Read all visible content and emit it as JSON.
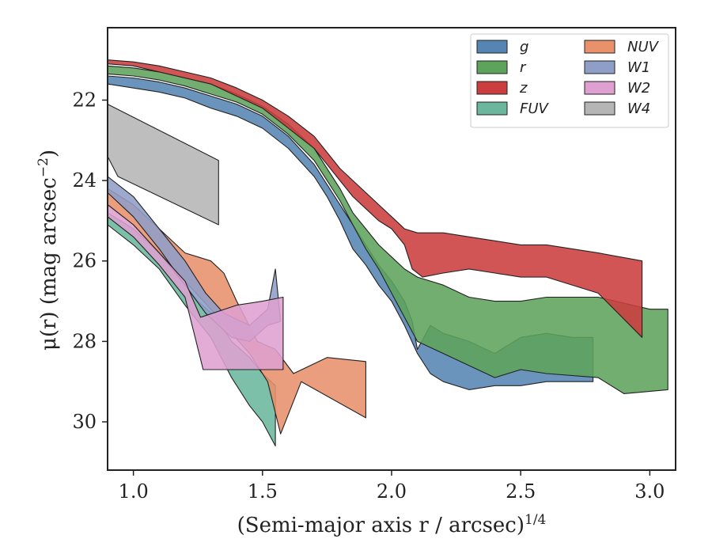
{
  "chart_data": {
    "type": "area",
    "xlabel": "(Semi-major axis r / arcsec)",
    "xlabel_superscript": "1/4",
    "ylabel": "μ(r) (mag arcsec",
    "ylabel_superscript": "−2",
    "ylabel_close": ")",
    "xlim": [
      0.9,
      3.1
    ],
    "ylim": [
      31.2,
      20.2
    ],
    "y_inverted": true,
    "xticks": [
      1.0,
      1.5,
      2.0,
      2.5,
      3.0
    ],
    "xtick_labels": [
      "1.0",
      "1.5",
      "2.0",
      "2.5",
      "3.0"
    ],
    "yticks": [
      22,
      24,
      26,
      28,
      30
    ],
    "ytick_labels": [
      "22",
      "24",
      "26",
      "28",
      "30"
    ],
    "grid": false,
    "legend_position": "top-right",
    "legend_columns": 2,
    "series": [
      {
        "name": "FUV",
        "color": "#6bb79e",
        "upper": [
          [
            0.9,
            24.8
          ],
          [
            1.0,
            25.2
          ],
          [
            1.1,
            25.8
          ],
          [
            1.2,
            26.6
          ],
          [
            1.25,
            27.0
          ],
          [
            1.32,
            27.4
          ],
          [
            1.38,
            28.0
          ],
          [
            1.45,
            28.4
          ],
          [
            1.5,
            28.8
          ],
          [
            1.55,
            29.1
          ]
        ],
        "lower": [
          [
            0.9,
            25.1
          ],
          [
            1.0,
            25.6
          ],
          [
            1.1,
            26.2
          ],
          [
            1.2,
            27.1
          ],
          [
            1.3,
            27.9
          ],
          [
            1.38,
            28.9
          ],
          [
            1.45,
            29.6
          ],
          [
            1.5,
            30.0
          ],
          [
            1.55,
            30.6
          ]
        ]
      },
      {
        "name": "NUV",
        "color": "#e8916b",
        "upper": [
          [
            0.9,
            24.2
          ],
          [
            1.0,
            24.6
          ],
          [
            1.1,
            25.2
          ],
          [
            1.2,
            25.8
          ],
          [
            1.3,
            26.0
          ],
          [
            1.35,
            26.3
          ],
          [
            1.4,
            27.0
          ],
          [
            1.48,
            28.0
          ],
          [
            1.55,
            28.2
          ],
          [
            1.62,
            28.8
          ],
          [
            1.75,
            28.4
          ],
          [
            1.9,
            28.5
          ]
        ],
        "lower": [
          [
            0.9,
            24.6
          ],
          [
            1.0,
            25.1
          ],
          [
            1.1,
            25.8
          ],
          [
            1.2,
            26.5
          ],
          [
            1.3,
            27.2
          ],
          [
            1.38,
            27.8
          ],
          [
            1.45,
            28.3
          ],
          [
            1.52,
            29.0
          ],
          [
            1.57,
            30.3
          ],
          [
            1.65,
            29.0
          ],
          [
            1.9,
            29.9
          ]
        ]
      },
      {
        "name": "W1",
        "color": "#8f9ec7",
        "upper": [
          [
            0.9,
            23.9
          ],
          [
            1.0,
            24.4
          ],
          [
            1.1,
            25.2
          ],
          [
            1.2,
            26.0
          ],
          [
            1.28,
            26.8
          ],
          [
            1.35,
            27.3
          ],
          [
            1.45,
            27.6
          ],
          [
            1.52,
            27.2
          ],
          [
            1.55,
            26.2
          ]
        ],
        "lower": [
          [
            0.9,
            24.3
          ],
          [
            1.0,
            24.9
          ],
          [
            1.1,
            25.7
          ],
          [
            1.2,
            26.6
          ],
          [
            1.28,
            27.3
          ],
          [
            1.38,
            27.9
          ],
          [
            1.45,
            28.0
          ],
          [
            1.52,
            27.6
          ],
          [
            1.57,
            27.5
          ]
        ]
      },
      {
        "name": "W2",
        "color": "#dea0d0",
        "upper": [
          [
            0.9,
            24.6
          ],
          [
            1.0,
            25.1
          ],
          [
            1.1,
            25.8
          ],
          [
            1.2,
            26.5
          ],
          [
            1.26,
            27.4
          ],
          [
            1.4,
            27.1
          ],
          [
            1.5,
            27.0
          ],
          [
            1.58,
            26.9
          ]
        ],
        "lower": [
          [
            0.9,
            24.9
          ],
          [
            1.0,
            25.4
          ],
          [
            1.1,
            26.1
          ],
          [
            1.2,
            26.9
          ],
          [
            1.27,
            28.7
          ],
          [
            1.4,
            28.7
          ],
          [
            1.58,
            28.7
          ]
        ]
      },
      {
        "name": "W4",
        "color": "#b5b5b5",
        "upper": [
          [
            0.9,
            22.1
          ],
          [
            1.33,
            23.5
          ]
        ],
        "lower": [
          [
            0.9,
            23.4
          ],
          [
            0.94,
            23.9
          ],
          [
            1.33,
            25.1
          ]
        ]
      },
      {
        "name": "g",
        "color": "#5685b4",
        "upper": [
          [
            0.9,
            21.4
          ],
          [
            1.0,
            21.45
          ],
          [
            1.1,
            21.55
          ],
          [
            1.2,
            21.7
          ],
          [
            1.3,
            21.9
          ],
          [
            1.4,
            22.1
          ],
          [
            1.5,
            22.4
          ],
          [
            1.6,
            22.9
          ],
          [
            1.7,
            23.6
          ],
          [
            1.75,
            24.1
          ],
          [
            1.8,
            24.6
          ],
          [
            1.85,
            25.1
          ],
          [
            1.9,
            25.6
          ],
          [
            1.95,
            26.1
          ],
          [
            2.0,
            26.5
          ],
          [
            2.05,
            27.0
          ],
          [
            2.08,
            27.5
          ],
          [
            2.1,
            28.2
          ],
          [
            2.15,
            27.6
          ],
          [
            2.2,
            27.8
          ],
          [
            2.3,
            28.0
          ],
          [
            2.4,
            28.3
          ],
          [
            2.5,
            27.9
          ],
          [
            2.6,
            27.8
          ],
          [
            2.7,
            27.9
          ],
          [
            2.78,
            27.9
          ]
        ],
        "lower": [
          [
            0.9,
            21.6
          ],
          [
            1.0,
            21.7
          ],
          [
            1.1,
            21.8
          ],
          [
            1.2,
            21.95
          ],
          [
            1.3,
            22.2
          ],
          [
            1.4,
            22.4
          ],
          [
            1.5,
            22.7
          ],
          [
            1.6,
            23.2
          ],
          [
            1.7,
            23.9
          ],
          [
            1.75,
            24.4
          ],
          [
            1.8,
            25.0
          ],
          [
            1.85,
            25.7
          ],
          [
            1.9,
            26.1
          ],
          [
            1.95,
            26.6
          ],
          [
            2.0,
            27.0
          ],
          [
            2.05,
            27.6
          ],
          [
            2.1,
            28.3
          ],
          [
            2.15,
            28.8
          ],
          [
            2.2,
            29.0
          ],
          [
            2.3,
            29.2
          ],
          [
            2.4,
            29.1
          ],
          [
            2.5,
            29.1
          ],
          [
            2.6,
            29.0
          ],
          [
            2.78,
            29.0
          ]
        ]
      },
      {
        "name": "r",
        "color": "#5ea35b",
        "upper": [
          [
            0.9,
            21.15
          ],
          [
            1.0,
            21.2
          ],
          [
            1.1,
            21.3
          ],
          [
            1.2,
            21.45
          ],
          [
            1.3,
            21.6
          ],
          [
            1.4,
            21.85
          ],
          [
            1.5,
            22.15
          ],
          [
            1.6,
            22.6
          ],
          [
            1.7,
            23.2
          ],
          [
            1.75,
            23.7
          ],
          [
            1.8,
            24.2
          ],
          [
            1.85,
            24.8
          ],
          [
            1.9,
            25.2
          ],
          [
            1.95,
            25.6
          ],
          [
            2.0,
            25.9
          ],
          [
            2.05,
            26.2
          ],
          [
            2.1,
            26.4
          ],
          [
            2.2,
            26.6
          ],
          [
            2.3,
            26.9
          ],
          [
            2.4,
            27.0
          ],
          [
            2.5,
            27.0
          ],
          [
            2.6,
            26.9
          ],
          [
            2.8,
            26.9
          ],
          [
            3.0,
            27.2
          ],
          [
            3.07,
            27.2
          ]
        ],
        "lower": [
          [
            0.9,
            21.35
          ],
          [
            1.0,
            21.4
          ],
          [
            1.1,
            21.5
          ],
          [
            1.2,
            21.65
          ],
          [
            1.3,
            21.85
          ],
          [
            1.4,
            22.05
          ],
          [
            1.5,
            22.35
          ],
          [
            1.6,
            22.85
          ],
          [
            1.7,
            23.5
          ],
          [
            1.75,
            24.0
          ],
          [
            1.8,
            24.5
          ],
          [
            1.85,
            25.1
          ],
          [
            1.9,
            25.7
          ],
          [
            1.95,
            26.2
          ],
          [
            2.0,
            26.8
          ],
          [
            2.05,
            27.4
          ],
          [
            2.1,
            28.0
          ],
          [
            2.2,
            28.3
          ],
          [
            2.3,
            28.6
          ],
          [
            2.4,
            28.9
          ],
          [
            2.5,
            28.7
          ],
          [
            2.6,
            28.8
          ],
          [
            2.8,
            28.9
          ],
          [
            2.9,
            29.3
          ],
          [
            3.07,
            29.2
          ]
        ]
      },
      {
        "name": "z",
        "color": "#cc3d3f",
        "upper": [
          [
            0.9,
            21.0
          ],
          [
            1.0,
            21.05
          ],
          [
            1.1,
            21.15
          ],
          [
            1.2,
            21.3
          ],
          [
            1.3,
            21.45
          ],
          [
            1.4,
            21.7
          ],
          [
            1.5,
            22.0
          ],
          [
            1.6,
            22.4
          ],
          [
            1.7,
            22.9
          ],
          [
            1.75,
            23.3
          ],
          [
            1.8,
            23.7
          ],
          [
            1.85,
            24.0
          ],
          [
            1.9,
            24.3
          ],
          [
            1.95,
            24.6
          ],
          [
            2.0,
            24.9
          ],
          [
            2.05,
            25.2
          ],
          [
            2.1,
            25.3
          ],
          [
            2.2,
            25.3
          ],
          [
            2.3,
            25.4
          ],
          [
            2.4,
            25.5
          ],
          [
            2.5,
            25.6
          ],
          [
            2.6,
            25.6
          ],
          [
            2.8,
            25.8
          ],
          [
            2.97,
            26.0
          ]
        ],
        "lower": [
          [
            0.9,
            21.1
          ],
          [
            1.0,
            21.15
          ],
          [
            1.1,
            21.3
          ],
          [
            1.2,
            21.45
          ],
          [
            1.3,
            21.6
          ],
          [
            1.4,
            21.9
          ],
          [
            1.5,
            22.2
          ],
          [
            1.6,
            22.7
          ],
          [
            1.7,
            23.2
          ],
          [
            1.75,
            23.6
          ],
          [
            1.8,
            24.0
          ],
          [
            1.85,
            24.4
          ],
          [
            1.9,
            24.7
          ],
          [
            1.95,
            25.0
          ],
          [
            2.0,
            25.2
          ],
          [
            2.05,
            25.6
          ],
          [
            2.08,
            26.2
          ],
          [
            2.12,
            26.4
          ],
          [
            2.2,
            26.3
          ],
          [
            2.3,
            26.2
          ],
          [
            2.4,
            26.3
          ],
          [
            2.5,
            26.4
          ],
          [
            2.6,
            26.4
          ],
          [
            2.8,
            26.8
          ],
          [
            2.97,
            27.9
          ]
        ]
      }
    ],
    "legend_order": [
      "g",
      "NUV",
      "r",
      "W1",
      "z",
      "W2",
      "FUV",
      "W4"
    ]
  }
}
